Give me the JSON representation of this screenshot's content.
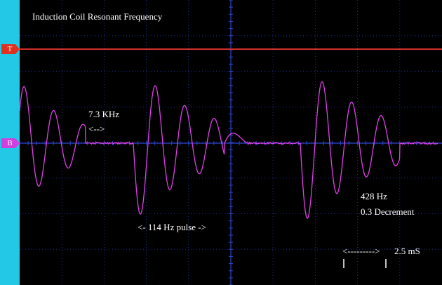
{
  "title": "Induction Coil Resonant Frequency",
  "channel_markers": {
    "top": "T",
    "middle": "B"
  },
  "annotations": {
    "khz_value": "7.3 KHz",
    "khz_arrow": "<-->",
    "pulse": "<- 114 Hz pulse ->",
    "hz_value": "428 Hz",
    "decrement": "0.3 Decrement",
    "scale_arrow": "<--------->",
    "scale_value": "2.5 mS"
  },
  "colors": {
    "background": "#000000",
    "left_bar": "#22c8e6",
    "grid": "#1e2f8f",
    "center_line": "#2d46d0",
    "trigger_line": "#d0302a",
    "trace": "#e040e8",
    "marker_t": "#e03020",
    "marker_b": "#d040e0"
  }
}
